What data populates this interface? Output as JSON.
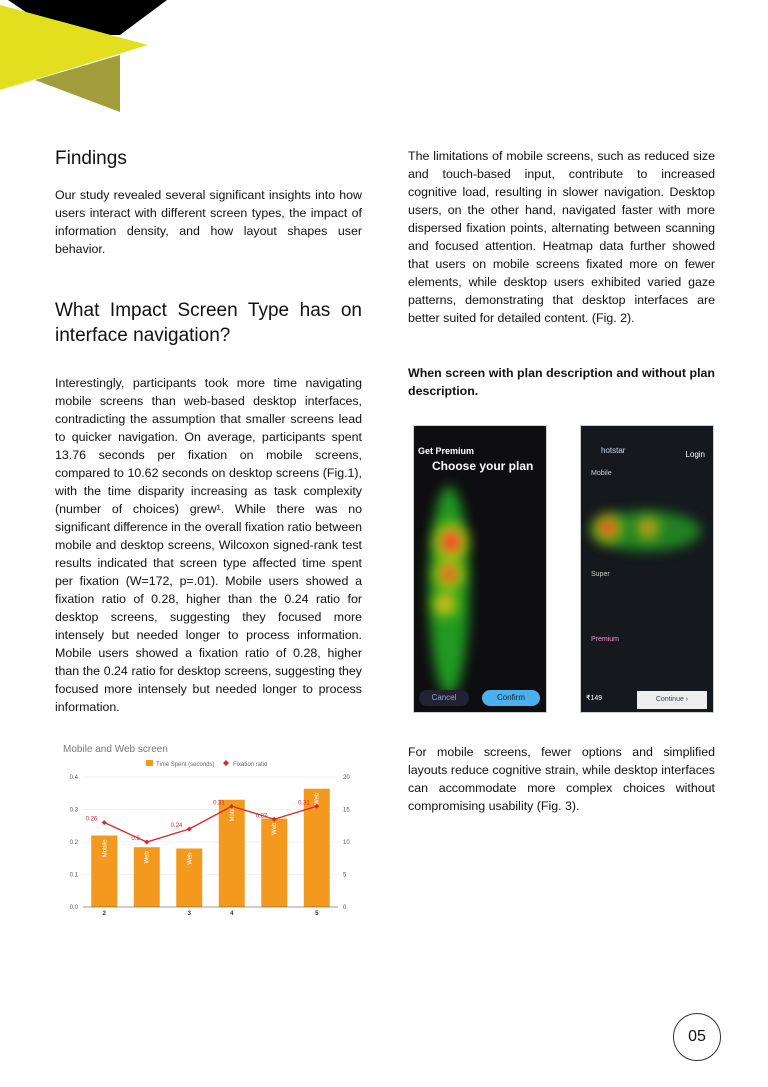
{
  "findings": {
    "title": "Findings",
    "intro": "Our study revealed several significant insights into how users interact with different screen types, the impact of information density, and how layout shapes user behavior."
  },
  "impact": {
    "title": "What Impact Screen Type has on interface navigation?",
    "body": "Interestingly, participants took more time navigating mobile screens than web-based desktop interfaces, contradicting the assumption that smaller screens lead to quicker navigation. On average, participants spent 13.76 seconds per fixation on mobile screens, compared to 10.62 seconds on desktop screens (Fig.1), with the time disparity increasing as task complexity (number of choices) grew¹. While there was no significant difference in the overall fixation ratio between mobile and desktop screens, Wilcoxon signed-rank test results indicated that screen type affected time spent per fixation (W=172, p=.01). Mobile users showed a fixation ratio of 0.28, higher than the 0.24 ratio for desktop screens, suggesting they focused more intensely but needed longer to process information. Mobile users showed a fixation ratio of 0.28, higher than the 0.24 ratio for desktop screens, suggesting they focused more intensely but needed longer to process information."
  },
  "right": {
    "para1": "The limitations of mobile screens, such as reduced size and touch-based input, contribute to increased cognitive load, resulting in slower navigation. Desktop users, on the other hand, navigated faster with more dispersed fixation points, alternating between scanning and focused attention. Heatmap data further showed that users on mobile screens fixated more on fewer elements, while desktop users exhibited varied gaze patterns, demonstrating that desktop interfaces are better suited for detailed content. (Fig. 2).",
    "subheading": "When screen with plan description and without plan description.",
    "para2": "For mobile screens, fewer options and simplified layouts reduce cognitive strain, while desktop interfaces can accommodate more complex choices without compromising usability (Fig. 3).",
    "heatmap_left": {
      "header": "Get Premium",
      "title": "Choose your plan",
      "cancel": "Cancel",
      "confirm": "Confirm"
    },
    "heatmap_right": {
      "brand": "hotstar",
      "login": "Login",
      "tier1": "Mobile",
      "tier2": "Super",
      "tier3": "Premium",
      "continue": "Continue ›",
      "price": "₹149"
    }
  },
  "page_number": "05",
  "colors": {
    "accent_yellow": "#e2df1e",
    "olive": "#a09d3a",
    "bar": "#f39a1e",
    "line": "#d32a2a"
  },
  "chart_data": {
    "type": "bar+line",
    "title": "Mobile and Web screen",
    "categories": [
      "2",
      "",
      "3",
      "4",
      "",
      "5"
    ],
    "bar_labels": [
      "Mobile",
      "Web",
      "Web",
      "Mobile",
      "Web",
      "Web"
    ],
    "series": [
      {
        "name": "Time Spent (seconds)",
        "type": "bar",
        "axis": "right",
        "values": [
          11,
          9.2,
          9,
          16.5,
          13.6,
          18.2
        ]
      },
      {
        "name": "Fixation ratio",
        "type": "line",
        "axis": "left",
        "values": [
          0.26,
          0.2,
          0.24,
          0.31,
          0.27,
          0.31
        ],
        "data_labels": [
          "0.26",
          "0.2",
          "0.24",
          "0.31",
          "0.27",
          "0.31"
        ]
      }
    ],
    "left_axis": {
      "range": [
        0,
        0.4
      ],
      "ticks": [
        "0.0",
        "0.1",
        "0.2",
        "0.3",
        "0.4"
      ]
    },
    "right_axis": {
      "range": [
        0,
        20
      ],
      "ticks": [
        "0",
        "5",
        "10",
        "15",
        "20"
      ]
    },
    "legend": "top",
    "grid": true
  }
}
